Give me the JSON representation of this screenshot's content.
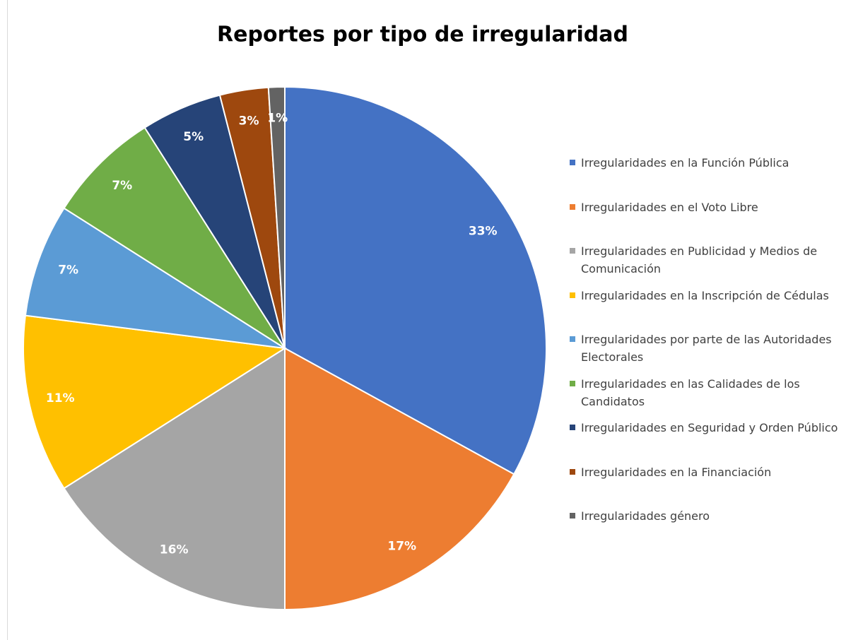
{
  "chart_data": {
    "type": "pie",
    "title": "Reportes por tipo de irregularidad",
    "categories": [
      "Irregularidades en la Función Pública",
      "Irregularidades en el Voto Libre",
      "Irregularidades en Publicidad y Medios de Comunicación",
      "Irregularidades en la Inscripción de Cédulas",
      "Irregularidades por parte de las Autoridades Electorales",
      "Irregularidades en las Calidades de los Candidatos",
      "Irregularidades en Seguridad y Orden Público",
      "Irregularidades en la Financiación",
      "Irregularidades género"
    ],
    "values": [
      33,
      17,
      16,
      11,
      7,
      7,
      5,
      3,
      1
    ],
    "value_labels": [
      "33%",
      "17%",
      "16%",
      "11%",
      "7%",
      "7%",
      "5%",
      "3%",
      "1%"
    ],
    "colors": [
      "#4472c4",
      "#ed7d31",
      "#a5a5a5",
      "#ffc000",
      "#5b9bd5",
      "#70ad47",
      "#264478",
      "#9e480e",
      "#636363"
    ],
    "legend": "right"
  }
}
